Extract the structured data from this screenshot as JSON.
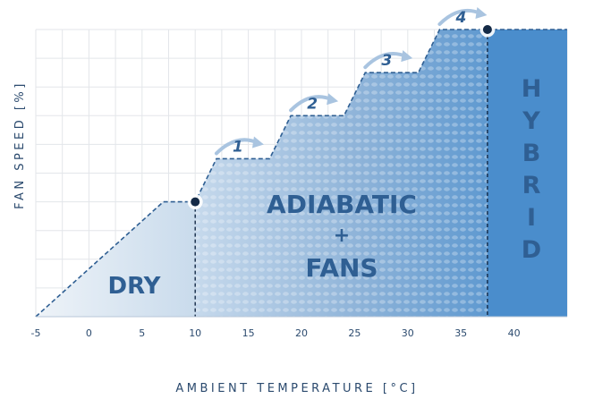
{
  "chart_data": {
    "type": "area",
    "xlabel": "AMBIENT TEMPERATURE [°C]",
    "ylabel": "FAN SPEED [%]",
    "x_ticks": [
      "-5",
      "0",
      "5",
      "10",
      "15",
      "20",
      "25",
      "30",
      "35",
      "40"
    ],
    "xlim": [
      -5,
      45
    ],
    "ylim": [
      0,
      100
    ],
    "grid": true,
    "series": [
      {
        "x": [
          -5,
          7,
          10,
          12,
          17,
          19,
          24,
          26,
          31,
          33,
          37.5,
          45
        ],
        "y": [
          0,
          40,
          40,
          55,
          55,
          70,
          70,
          85,
          85,
          100,
          100,
          100
        ]
      }
    ],
    "zones": [
      {
        "label": "DRY",
        "x_start": -5,
        "x_end": 10,
        "color": "#d7e4f0"
      },
      {
        "label": "ADIABATIC + FANS",
        "lines": [
          "ADIABATIC",
          "+",
          "FANS"
        ],
        "x_start": 10,
        "x_end": 37.5,
        "color": "#7fa8d1"
      },
      {
        "label": "HYBRID",
        "letters": [
          "H",
          "Y",
          "B",
          "R",
          "I",
          "D"
        ],
        "x_start": 37.5,
        "x_end": 45,
        "color": "#4a8dcc"
      }
    ],
    "switch_points": [
      {
        "x": 10,
        "y": 40
      },
      {
        "x": 37.5,
        "y": 100
      }
    ],
    "steps": [
      {
        "label": "1",
        "x": 12,
        "y": 55
      },
      {
        "label": "2",
        "x": 19,
        "y": 70
      },
      {
        "label": "3",
        "x": 26,
        "y": 85
      },
      {
        "label": "4",
        "x": 33,
        "y": 100
      }
    ],
    "colors": {
      "line": "#2f5f93",
      "text": "#2b4a6e",
      "grid": "#e3e6ea",
      "marker": "#142a46"
    }
  }
}
